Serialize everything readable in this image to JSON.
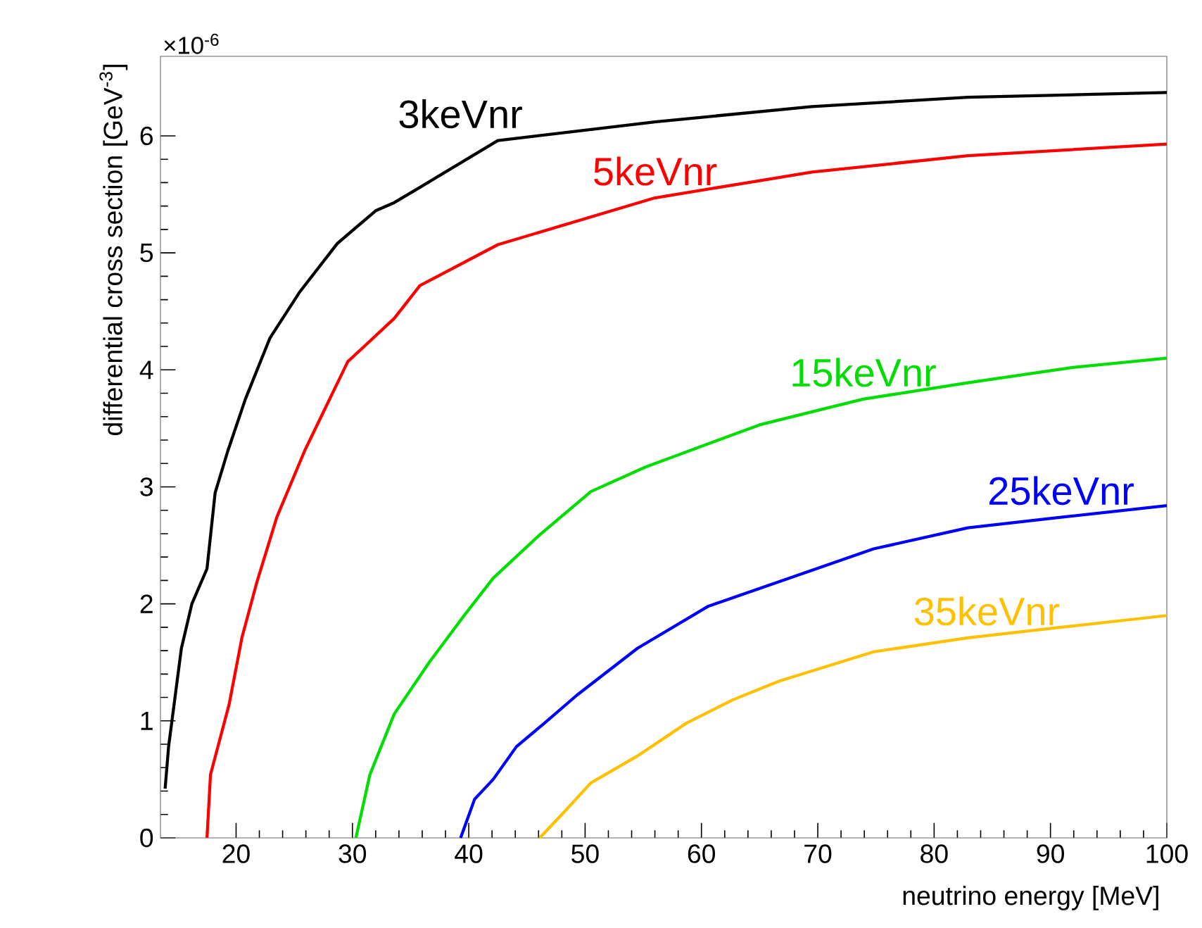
{
  "chart_data": {
    "type": "line",
    "xlabel": "neutrino energy [MeV]",
    "ylabel": "differential cross section [GeV$^{-3}$]",
    "annotations": [
      "×10$^{-6}$"
    ],
    "xlim": [
      13.5,
      100
    ],
    "ylim": [
      0,
      6.68
    ],
    "xticks": [
      20,
      30,
      40,
      50,
      60,
      70,
      80,
      90,
      100
    ],
    "yticks": [
      0,
      1,
      2,
      3,
      4,
      5,
      6
    ],
    "grid": false,
    "legend": false,
    "marker": "none",
    "line_style": "solid",
    "series": [
      {
        "name": "3keVnr",
        "color": "#000000",
        "x": [
          13.9,
          14.2,
          15.3,
          16.2,
          17.5,
          18.2,
          19.3,
          20.8,
          22.9,
          25.5,
          28.7,
          32.0,
          33.6,
          35.8,
          42.5,
          56.0,
          69.5,
          82.9,
          100
        ],
        "values": [
          0.42,
          0.78,
          1.62,
          2.0,
          2.3,
          2.95,
          3.31,
          3.75,
          4.27,
          4.67,
          5.08,
          5.36,
          5.43,
          5.56,
          5.96,
          6.12,
          6.25,
          6.33,
          6.37
        ]
      },
      {
        "name": "5keVnr",
        "color": "#ff0000",
        "x": [
          17.5,
          17.8,
          19.4,
          20.5,
          21.8,
          23.5,
          25.9,
          29.6,
          33.6,
          35.8,
          42.5,
          56.0,
          69.5,
          82.9,
          100
        ],
        "values": [
          0,
          0.54,
          1.14,
          1.71,
          2.19,
          2.74,
          3.31,
          4.07,
          4.44,
          4.72,
          5.07,
          5.47,
          5.69,
          5.83,
          5.93
        ]
      },
      {
        "name": "15keVnr",
        "color": "#00dd00",
        "x": [
          30.3,
          31.5,
          33.6,
          36.6,
          39.6,
          42.1,
          46.1,
          50.5,
          55.2,
          65.0,
          73.9,
          82.9,
          91.9,
          100
        ],
        "values": [
          0,
          0.54,
          1.06,
          1.5,
          1.9,
          2.22,
          2.59,
          2.96,
          3.17,
          3.53,
          3.75,
          3.89,
          4.02,
          4.1
        ]
      },
      {
        "name": "25keVnr",
        "color": "#0000ff",
        "x": [
          39.3,
          40.5,
          42.1,
          44.1,
          46.5,
          49.3,
          54.5,
          60.6,
          66.7,
          74.8,
          82.9,
          90.9,
          100
        ],
        "values": [
          0,
          0.33,
          0.5,
          0.78,
          0.98,
          1.22,
          1.62,
          1.98,
          2.19,
          2.47,
          2.65,
          2.74,
          2.84
        ]
      },
      {
        "name": "35keVnr",
        "color": "#ffc000",
        "x": [
          46.1,
          48.1,
          50.5,
          54.5,
          58.7,
          62.7,
          66.7,
          74.8,
          82.9,
          90.9,
          100
        ],
        "values": [
          0,
          0.21,
          0.47,
          0.7,
          0.98,
          1.18,
          1.34,
          1.59,
          1.71,
          1.8,
          1.9
        ]
      }
    ]
  }
}
